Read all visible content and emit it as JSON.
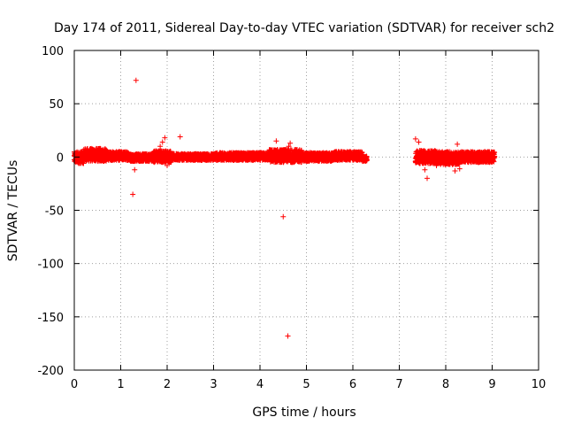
{
  "chart_data": {
    "type": "scatter",
    "title": "Day 174 of 2011, Sidereal Day-to-day VTEC variation (SDTVAR) for receiver sch2",
    "xlabel": "GPS time / hours",
    "ylabel": "SDTVAR / TECUs",
    "xlim": [
      0,
      10
    ],
    "ylim": [
      -200,
      100
    ],
    "xticks": [
      0,
      1,
      2,
      3,
      4,
      5,
      6,
      7,
      8,
      9,
      10
    ],
    "yticks": [
      -200,
      -150,
      -100,
      -50,
      0,
      50,
      100
    ],
    "grid": true,
    "marker": "+",
    "series_color": "#ff0000",
    "band_segments": [
      {
        "x_start": 0.0,
        "x_end": 0.2,
        "y_low": -6,
        "y_high": 5
      },
      {
        "x_start": 0.2,
        "x_end": 0.7,
        "y_low": -4,
        "y_high": 8
      },
      {
        "x_start": 0.7,
        "x_end": 1.2,
        "y_low": -3,
        "y_high": 5
      },
      {
        "x_start": 1.2,
        "x_end": 1.7,
        "y_low": -4,
        "y_high": 3
      },
      {
        "x_start": 1.7,
        "x_end": 2.1,
        "y_low": -5,
        "y_high": 6
      },
      {
        "x_start": 2.1,
        "x_end": 3.0,
        "y_low": -3,
        "y_high": 3
      },
      {
        "x_start": 3.0,
        "x_end": 4.2,
        "y_low": -3,
        "y_high": 4
      },
      {
        "x_start": 4.2,
        "x_end": 4.9,
        "y_low": -5,
        "y_high": 7
      },
      {
        "x_start": 4.9,
        "x_end": 5.6,
        "y_low": -4,
        "y_high": 4
      },
      {
        "x_start": 5.6,
        "x_end": 6.2,
        "y_low": -3,
        "y_high": 5
      },
      {
        "x_start": 6.2,
        "x_end": 6.3,
        "y_low": -4,
        "y_high": 1
      },
      {
        "x_start": 7.35,
        "x_end": 7.8,
        "y_low": -6,
        "y_high": 6
      },
      {
        "x_start": 7.8,
        "x_end": 8.3,
        "y_low": -7,
        "y_high": 5
      },
      {
        "x_start": 8.3,
        "x_end": 9.05,
        "y_low": -5,
        "y_high": 5
      }
    ],
    "outliers": [
      {
        "x": 1.33,
        "y": 72
      },
      {
        "x": 1.26,
        "y": -35
      },
      {
        "x": 1.3,
        "y": -12
      },
      {
        "x": 1.85,
        "y": 10
      },
      {
        "x": 1.9,
        "y": 14
      },
      {
        "x": 1.95,
        "y": 18
      },
      {
        "x": 2.28,
        "y": 19
      },
      {
        "x": 2.0,
        "y": -8
      },
      {
        "x": 4.35,
        "y": 15
      },
      {
        "x": 4.5,
        "y": -56
      },
      {
        "x": 4.6,
        "y": -168
      },
      {
        "x": 4.65,
        "y": 13
      },
      {
        "x": 4.62,
        "y": 10
      },
      {
        "x": 7.35,
        "y": 17
      },
      {
        "x": 7.42,
        "y": 14
      },
      {
        "x": 7.6,
        "y": -20
      },
      {
        "x": 7.55,
        "y": -12
      },
      {
        "x": 8.25,
        "y": 12
      },
      {
        "x": 8.2,
        "y": -13
      },
      {
        "x": 8.3,
        "y": -11
      },
      {
        "x": 7.8,
        "y": -8
      }
    ]
  }
}
